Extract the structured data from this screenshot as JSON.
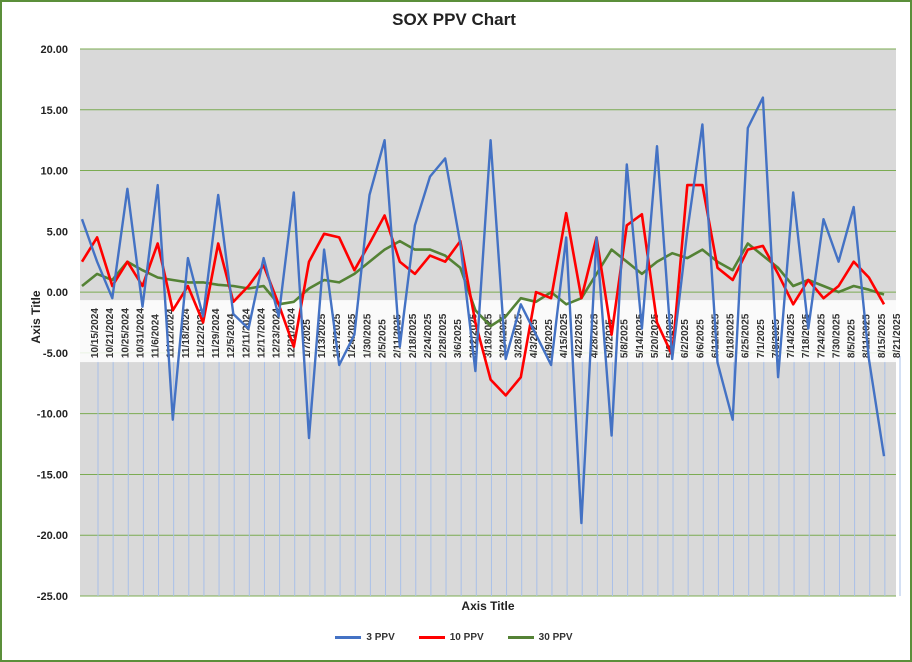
{
  "chart_data": {
    "type": "line",
    "title": "SOX PPV Chart",
    "xlabel": "Axis Title",
    "ylabel": "Axis Title",
    "ylim": [
      -25,
      20
    ],
    "yticks": [
      "20.00",
      "15.00",
      "10.00",
      "5.00",
      "0.00",
      "-5.00",
      "-10.00",
      "-15.00",
      "-20.00",
      "-25.00"
    ],
    "grid": true,
    "legend_position": "bottom",
    "categories": [
      "10/15/2024",
      "10/21/2024",
      "10/25/2024",
      "10/31/2024",
      "11/6/2024",
      "11/12/2024",
      "11/18/2024",
      "11/22/2024",
      "11/29/2024",
      "12/5/2024",
      "12/11/2024",
      "12/17/2024",
      "12/23/2024",
      "12/31/2024",
      "1/7/2025",
      "1/13/2025",
      "1/17/2025",
      "1/24/2025",
      "1/30/2025",
      "2/5/2025",
      "2/11/2025",
      "2/18/2025",
      "2/24/2025",
      "2/28/2025",
      "3/6/2025",
      "3/12/2025",
      "3/18/2025",
      "3/24/2025",
      "3/28/2025",
      "4/3/2025",
      "4/9/2025",
      "4/15/2025",
      "4/22/2025",
      "4/28/2025",
      "5/2/2025",
      "5/8/2025",
      "5/14/2025",
      "5/20/2025",
      "5/27/2025",
      "6/2/2025",
      "6/6/2025",
      "6/12/2025",
      "6/18/2025",
      "6/25/2025",
      "7/1/2025",
      "7/8/2025",
      "7/14/2025",
      "7/18/2025",
      "7/24/2025",
      "7/30/2025",
      "8/5/2025",
      "8/11/2025",
      "8/15/2025",
      "8/21/2025"
    ],
    "series": [
      {
        "name": "3 PPV",
        "color": "#4472c4",
        "values": [
          6.0,
          2.5,
          -0.5,
          8.5,
          -1.2,
          8.8,
          -10.5,
          2.8,
          -2.0,
          8.0,
          -1.8,
          -3.0,
          2.8,
          -2.0,
          8.2,
          -12.0,
          3.5,
          -6.0,
          -3.5,
          8.0,
          12.5,
          -4.5,
          5.5,
          9.5,
          11.0,
          4.0,
          -6.5,
          12.5,
          -5.5,
          -1.0,
          -3.5,
          -6.0,
          4.5,
          -19.0,
          4.5,
          -11.8,
          10.5,
          -3.0,
          12.0,
          -5.5,
          5.0,
          13.8,
          -5.8,
          -10.5,
          13.5,
          16.0,
          -7.0,
          8.2,
          -3.0,
          6.0,
          2.5,
          7.0,
          -5.5,
          -13.5
        ]
      },
      {
        "name": "10 PPV",
        "color": "#ff0000",
        "values": [
          2.5,
          4.5,
          0.5,
          2.5,
          0.5,
          4.0,
          -1.5,
          0.5,
          -2.5,
          4.0,
          -0.8,
          0.5,
          2.2,
          -1.0,
          -4.5,
          2.5,
          4.8,
          4.5,
          1.8,
          4.0,
          6.3,
          2.5,
          1.5,
          3.0,
          2.5,
          4.2,
          -2.5,
          -7.2,
          -8.5,
          -7.0,
          0.0,
          -0.5,
          6.5,
          -0.5,
          4.5,
          -3.5,
          5.5,
          6.4,
          -2.5,
          -5.2,
          8.8,
          8.8,
          2.0,
          1.0,
          3.5,
          3.8,
          1.5,
          -1.0,
          1.0,
          -0.5,
          0.5,
          2.5,
          1.2,
          -1.0
        ]
      },
      {
        "name": "30 PPV",
        "color": "#548235",
        "values": [
          0.5,
          1.5,
          1.0,
          2.5,
          1.8,
          1.2,
          1.0,
          0.8,
          0.8,
          0.6,
          0.5,
          0.3,
          0.5,
          -1.0,
          -0.8,
          0.3,
          1.0,
          0.8,
          1.5,
          2.5,
          3.5,
          4.2,
          3.5,
          3.5,
          3.0,
          2.0,
          -1.5,
          -2.8,
          -2.0,
          -0.5,
          -0.8,
          0.0,
          -1.0,
          -0.5,
          1.5,
          3.5,
          2.5,
          1.5,
          2.5,
          3.2,
          2.8,
          3.5,
          2.5,
          1.8,
          4.0,
          3.0,
          2.0,
          0.5,
          1.0,
          0.5,
          0.0,
          0.5,
          0.2,
          -0.2
        ]
      }
    ]
  }
}
